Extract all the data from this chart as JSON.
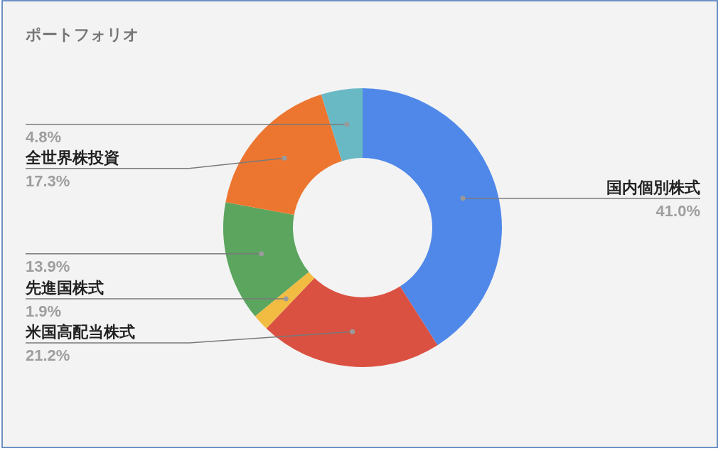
{
  "chart_data": {
    "type": "donut",
    "title": "ポートフォリオ",
    "categories": [
      "国内個別株式",
      "米国高配当株式",
      "先進国株式",
      null,
      "全世界株投資",
      null
    ],
    "values": [
      41.0,
      21.2,
      1.9,
      13.9,
      17.3,
      4.8
    ],
    "colors": [
      "#5088ea",
      "#da5142",
      "#f2bc43",
      "#5ba55f",
      "#ec7630",
      "#69b9c5"
    ],
    "value_labels": [
      "41.0%",
      "21.2%",
      "1.9%",
      "13.9%",
      "17.3%",
      "4.8%"
    ]
  }
}
